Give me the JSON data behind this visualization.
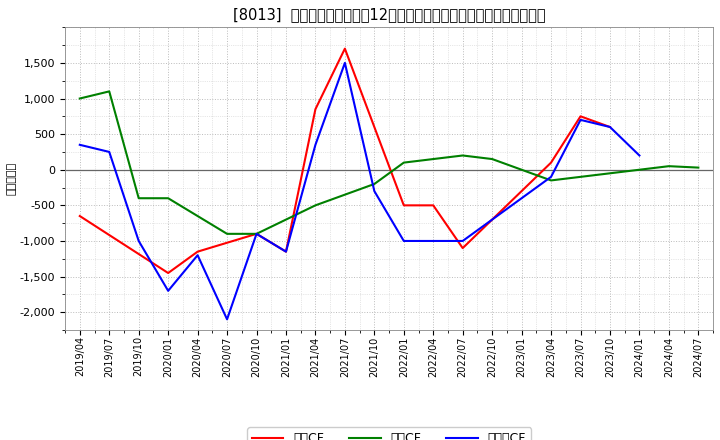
{
  "title": "[8013]  キャッシュフローの12か月移動合計の対前年同期増減額の推移",
  "ylabel": "（百万円）",
  "background_color": "#ffffff",
  "grid_color": "#bbbbbb",
  "xlabels": [
    "2019/04",
    "2019/07",
    "2019/10",
    "2020/01",
    "2020/04",
    "2020/07",
    "2020/10",
    "2021/01",
    "2021/04",
    "2021/07",
    "2021/10",
    "2022/01",
    "2022/04",
    "2022/07",
    "2022/10",
    "2023/01",
    "2023/04",
    "2023/07",
    "2023/10",
    "2024/01",
    "2024/04",
    "2024/07"
  ],
  "operating_cf": {
    "x": [
      0,
      3,
      4,
      6,
      7,
      8,
      9,
      11,
      12,
      13,
      16,
      17,
      18
    ],
    "y": [
      -650,
      -1450,
      -1150,
      -900,
      -1150,
      850,
      1700,
      -500,
      -500,
      -1100,
      100,
      750,
      600
    ]
  },
  "investing_cf": {
    "x": [
      0,
      1,
      2,
      3,
      5,
      6,
      8,
      10,
      11,
      12,
      13,
      14,
      15,
      16,
      17,
      18,
      19,
      20,
      21
    ],
    "y": [
      1000,
      1100,
      -400,
      -400,
      -900,
      -900,
      -500,
      -200,
      100,
      150,
      200,
      150,
      0,
      -150,
      -100,
      -50,
      0,
      50,
      30
    ]
  },
  "free_cf": {
    "x": [
      0,
      1,
      2,
      3,
      4,
      5,
      6,
      7,
      8,
      9,
      10,
      11,
      12,
      13,
      16,
      17,
      18,
      19
    ],
    "y": [
      350,
      250,
      -1000,
      -1700,
      -1200,
      -2100,
      -900,
      -1150,
      350,
      1500,
      -300,
      -1000,
      -1000,
      -1000,
      -100,
      700,
      600,
      200
    ]
  },
  "colors": {
    "operating": "#ff0000",
    "investing": "#008000",
    "free": "#0000ff"
  },
  "legend_labels": [
    "営業CF",
    "投資CF",
    "フリーCF"
  ],
  "ylim": [
    -2250,
    2000
  ],
  "yticks": [
    -2000,
    -1500,
    -1000,
    -500,
    0,
    500,
    1000,
    1500
  ]
}
